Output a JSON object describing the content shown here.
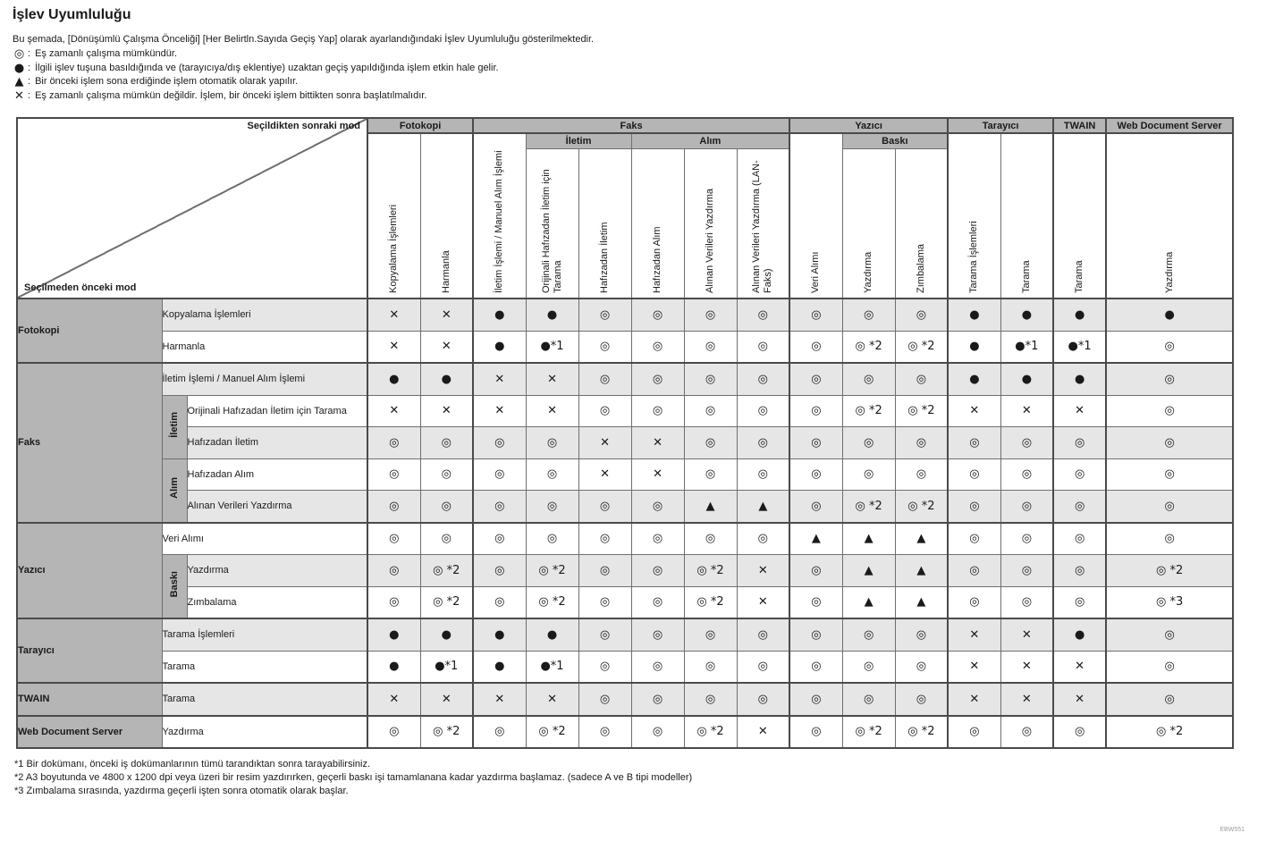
{
  "page": {
    "title": "İşlev Uyumluluğu",
    "intro": "Bu şemada, [Dönüşümlü Çalışma Önceliği] [Her Belirtln.Sayıda Geçiş Yap] olarak ayarlandığındaki İşlev Uyumluluğu gösterilmektedir.",
    "legend": [
      {
        "symbol": "◎",
        "text": "Eş zamanlı çalışma mümkündür."
      },
      {
        "symbol": "●",
        "text": "İlgili işlev tuşuna basıldığında ve (tarayıcıya/dış eklentiye) uzaktan geçiş yapıldığında işlem etkin hale gelir."
      },
      {
        "symbol": "▲",
        "text": "Bir önceki işlem sona erdiğinde işlem otomatik olarak yapılır."
      },
      {
        "symbol": "✕",
        "text": "Eş zamanlı çalışma mümkün değildir. İşlem, bir önceki işlem bittikten sonra başlatılmalıdır."
      }
    ],
    "footnotes": [
      "*1 Bir dokümanı, önceki iş dokümanlarının tümü tarandıktan sonra tarayabilirsiniz.",
      "*2 A3 boyutunda ve 4800 x 1200 dpi veya üzeri bir resim yazdırırken, geçerli baskı işi tamamlanana kadar yazdırma başlamaz. (sadece  A ve B tipi modeller)",
      "*3 Zımbalama sırasında, yazdırma geçerli işten sonra otomatik olarak başlar."
    ],
    "figure_code": "EBW551"
  },
  "table": {
    "corner": {
      "top_label": "Seçildikten sonraki mod",
      "bottom_label": "Seçilmeden önceki mod"
    },
    "col_groups": [
      {
        "label": "Fotokopi",
        "span": 2
      },
      {
        "label": "Faks",
        "span": 6
      },
      {
        "label": "Yazıcı",
        "span": 3
      },
      {
        "label": "Tarayıcı",
        "span": 2
      },
      {
        "label": "TWAIN",
        "span": 1
      },
      {
        "label": "Web Document Server",
        "span": 1
      }
    ],
    "col_subgroups": [
      {
        "label": "İletim",
        "span": 2
      },
      {
        "label": "Alım",
        "span": 3
      },
      {
        "label": "Baskı",
        "span": 2
      }
    ],
    "columns": [
      "Kopyalama İşlemleri",
      "Harmanla",
      "İletim İşlemi / Manuel Alım İşlemi",
      "Orijinali Hafızadan İletim için Tarama",
      "Hafızadan İletim",
      "Hafızadan Alım",
      "Alınan Verileri Yazdırma",
      "Alınan Verileri Yazdırma (LAN-Faks)",
      "Veri Alımı",
      "Yazdırma",
      "Zımbalama",
      "Tarama İşlemleri",
      "Tarama",
      "Tarama",
      "Yazdırma"
    ],
    "rows": [
      {
        "group": "Fotokopi",
        "group_rows": 2,
        "label": "Kopyalama İşlemleri",
        "cells": [
          "✕",
          "✕",
          "●",
          "●",
          "◎",
          "◎",
          "◎",
          "◎",
          "◎",
          "◎",
          "◎",
          "●",
          "●",
          "●",
          "●"
        ]
      },
      {
        "label": "Harmanla",
        "cells": [
          "✕",
          "✕",
          "●",
          "●*1",
          "◎",
          "◎",
          "◎",
          "◎",
          "◎",
          "◎ *2",
          "◎ *2",
          "●",
          "●*1",
          "●*1",
          "◎"
        ]
      },
      {
        "group": "Faks",
        "group_rows": 5,
        "label": "İletim İşlemi / Manuel Alım İşlemi",
        "cells": [
          "●",
          "●",
          "✕",
          "✕",
          "◎",
          "◎",
          "◎",
          "◎",
          "◎",
          "◎",
          "◎",
          "●",
          "●",
          "●",
          "◎"
        ]
      },
      {
        "sub": "İletim",
        "sub_rows": 2,
        "in_sub": true,
        "label": "Orijinali Hafızadan İletim için Tarama",
        "cells": [
          "✕",
          "✕",
          "✕",
          "✕",
          "◎",
          "◎",
          "◎",
          "◎",
          "◎",
          "◎ *2",
          "◎ *2",
          "✕",
          "✕",
          "✕",
          "◎"
        ]
      },
      {
        "in_sub": true,
        "label": "Hafızadan İletim",
        "cells": [
          "◎",
          "◎",
          "◎",
          "◎",
          "✕",
          "✕",
          "◎",
          "◎",
          "◎",
          "◎",
          "◎",
          "◎",
          "◎",
          "◎",
          "◎"
        ]
      },
      {
        "sub": "Alım",
        "sub_rows": 2,
        "in_sub": true,
        "label": "Hafızadan Alım",
        "cells": [
          "◎",
          "◎",
          "◎",
          "◎",
          "✕",
          "✕",
          "◎",
          "◎",
          "◎",
          "◎",
          "◎",
          "◎",
          "◎",
          "◎",
          "◎"
        ]
      },
      {
        "in_sub": true,
        "label": "Alınan Verileri Yazdırma",
        "cells": [
          "◎",
          "◎",
          "◎",
          "◎",
          "◎",
          "◎",
          "▲",
          "▲",
          "◎",
          "◎ *2",
          "◎ *2",
          "◎",
          "◎",
          "◎",
          "◎"
        ]
      },
      {
        "group": "Yazıcı",
        "group_rows": 3,
        "label": "Veri Alımı",
        "cells": [
          "◎",
          "◎",
          "◎",
          "◎",
          "◎",
          "◎",
          "◎",
          "◎",
          "▲",
          "▲",
          "▲",
          "◎",
          "◎",
          "◎",
          "◎"
        ]
      },
      {
        "sub": "Baskı",
        "sub_rows": 2,
        "in_sub": true,
        "label": "Yazdırma",
        "cells": [
          "◎",
          "◎ *2",
          "◎",
          "◎ *2",
          "◎",
          "◎",
          "◎ *2",
          "✕",
          "◎",
          "▲",
          "▲",
          "◎",
          "◎",
          "◎",
          "◎ *2"
        ]
      },
      {
        "in_sub": true,
        "label": "Zımbalama",
        "cells": [
          "◎",
          "◎ *2",
          "◎",
          "◎ *2",
          "◎",
          "◎",
          "◎ *2",
          "✕",
          "◎",
          "▲",
          "▲",
          "◎",
          "◎",
          "◎",
          "◎ *3"
        ]
      },
      {
        "group": "Tarayıcı",
        "group_rows": 2,
        "label": "Tarama İşlemleri",
        "cells": [
          "●",
          "●",
          "●",
          "●",
          "◎",
          "◎",
          "◎",
          "◎",
          "◎",
          "◎",
          "◎",
          "✕",
          "✕",
          "●",
          "◎"
        ]
      },
      {
        "label": "Tarama",
        "cells": [
          "●",
          "●*1",
          "●",
          "●*1",
          "◎",
          "◎",
          "◎",
          "◎",
          "◎",
          "◎",
          "◎",
          "✕",
          "✕",
          "✕",
          "◎"
        ]
      },
      {
        "group": "TWAIN",
        "group_rows": 1,
        "label": "Tarama",
        "cells": [
          "✕",
          "✕",
          "✕",
          "✕",
          "◎",
          "◎",
          "◎",
          "◎",
          "◎",
          "◎",
          "◎",
          "✕",
          "✕",
          "✕",
          "◎"
        ]
      },
      {
        "group": "Web Document Server",
        "group_rows": 1,
        "label": "Yazdırma",
        "cells": [
          "◎",
          "◎ *2",
          "◎",
          "◎ *2",
          "◎",
          "◎",
          "◎ *2",
          "✕",
          "◎",
          "◎ *2",
          "◎ *2",
          "◎",
          "◎",
          "◎",
          "◎ *2"
        ]
      }
    ]
  }
}
